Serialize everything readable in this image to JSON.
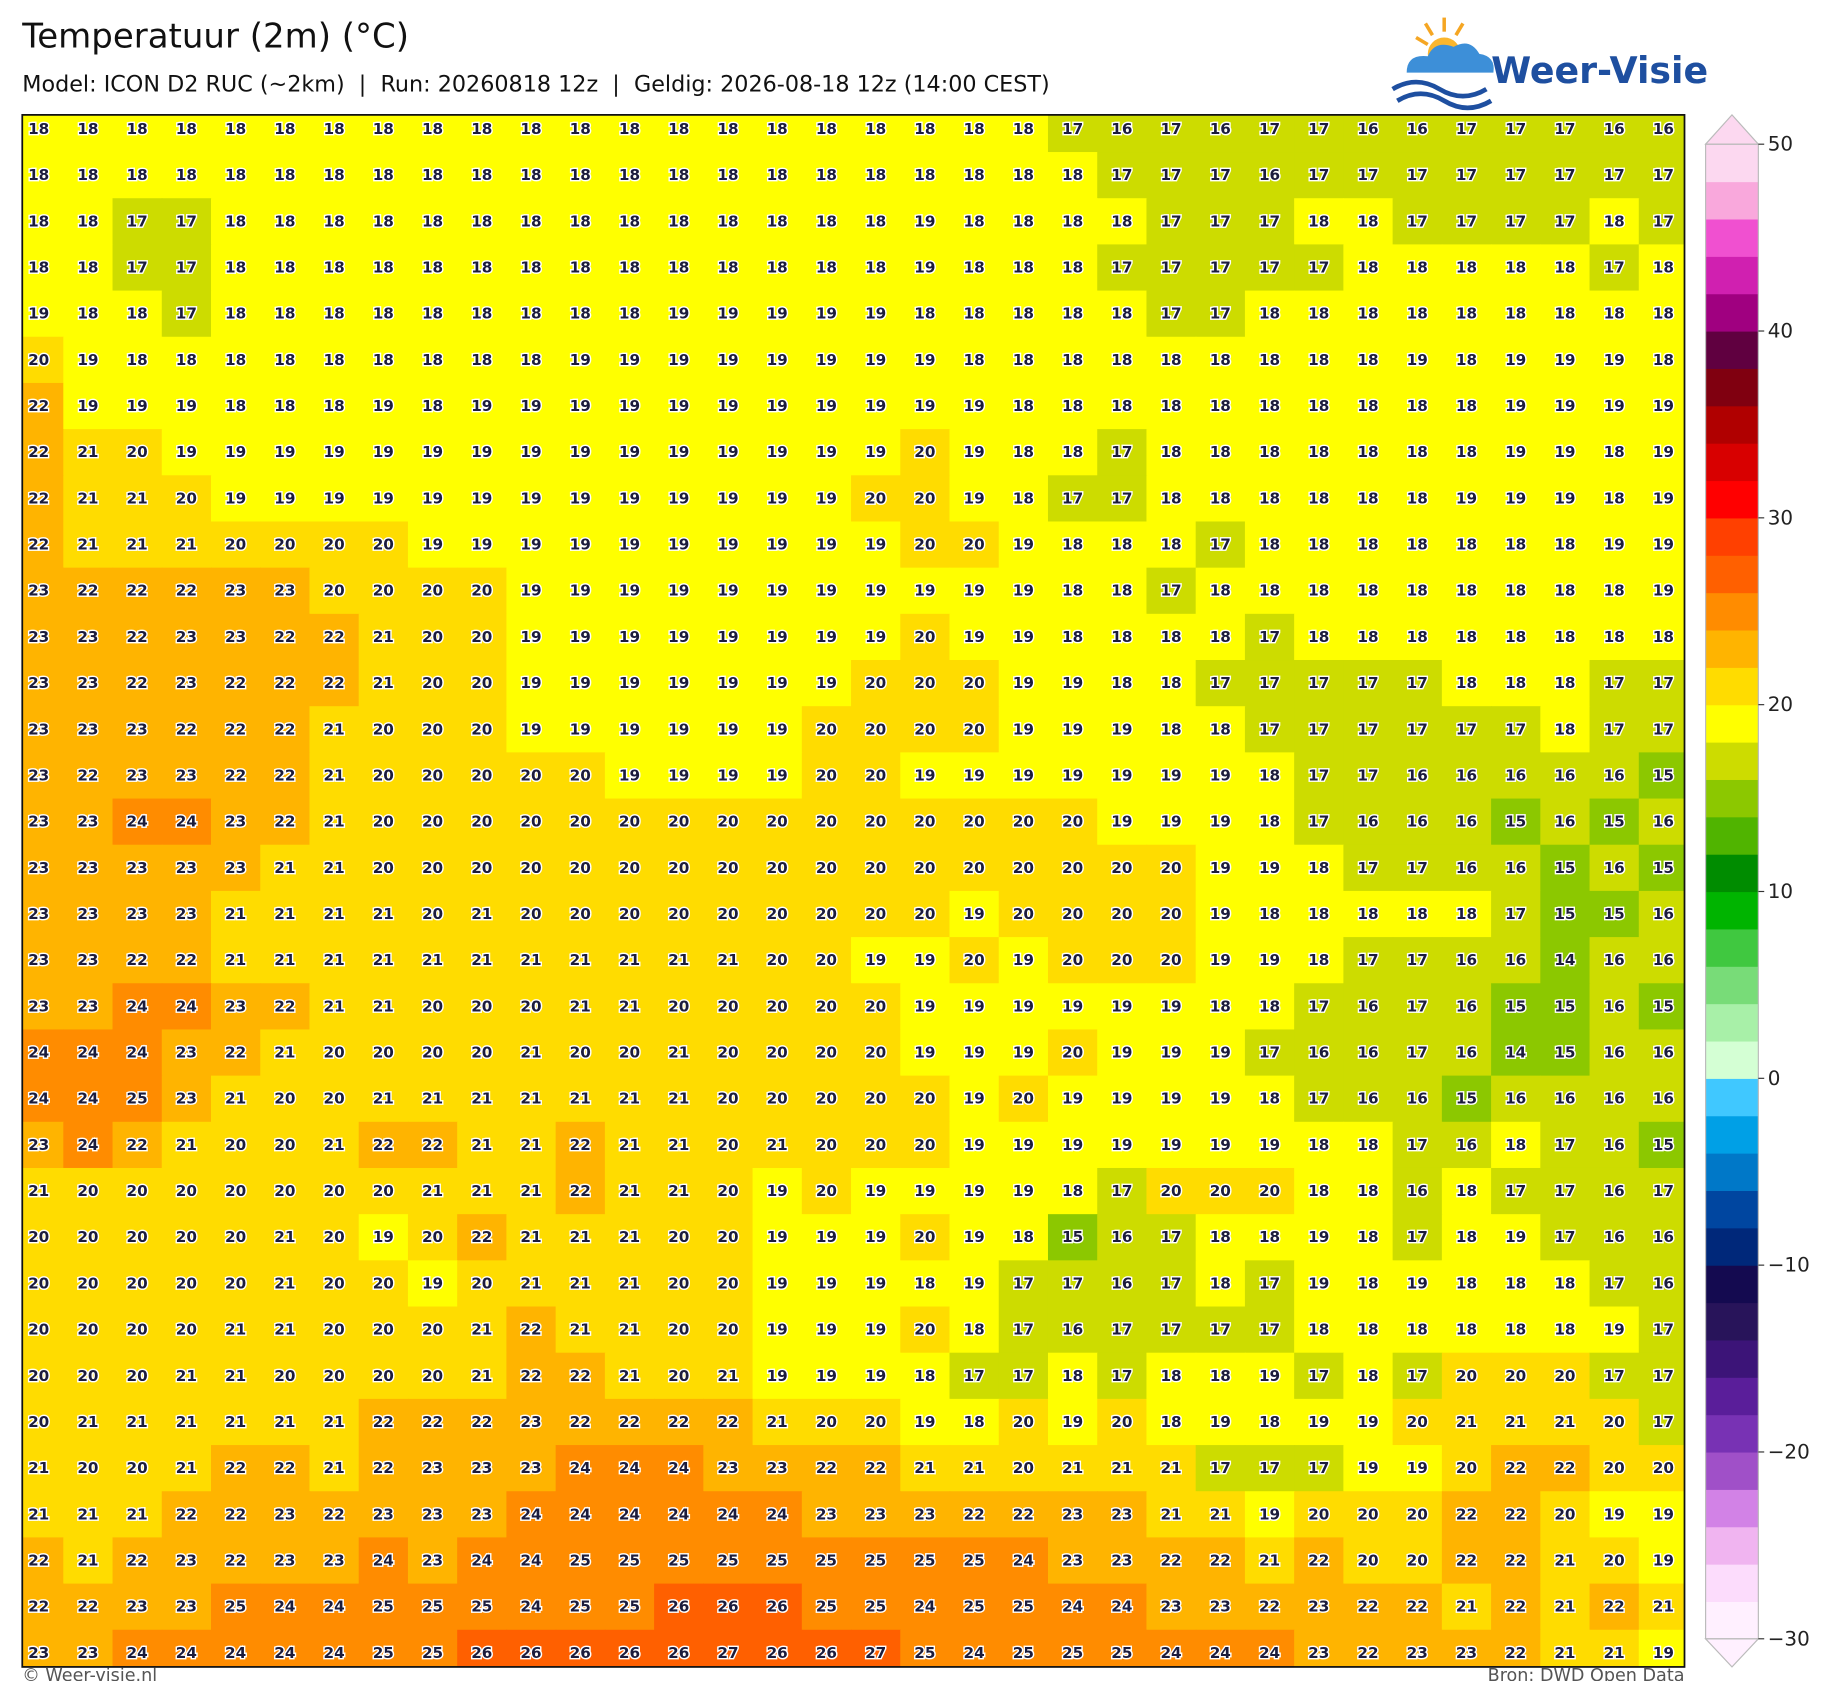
{
  "header": {
    "title": "Temperatuur (2m) (°C)",
    "subtitle": "Model: ICON D2 RUC (~2km)  |  Run: 20260818 12z  |  Geldig: 2026-08-18 12z (14:00 CEST)",
    "logo": "Weer-Visie"
  },
  "map": {
    "type": "grid",
    "values": [
      [
        18,
        18,
        18,
        18,
        18,
        18,
        18,
        18,
        18,
        18,
        18,
        18,
        18,
        18,
        18,
        18,
        18,
        18,
        18,
        18,
        18,
        17,
        16,
        17,
        16,
        17,
        17,
        16,
        16,
        17,
        17,
        17,
        16,
        16
      ],
      [
        18,
        18,
        18,
        18,
        18,
        18,
        18,
        18,
        18,
        18,
        18,
        18,
        18,
        18,
        18,
        18,
        18,
        18,
        18,
        18,
        18,
        18,
        17,
        17,
        17,
        16,
        17,
        17,
        17,
        17,
        17,
        17,
        17,
        17
      ],
      [
        18,
        18,
        17,
        17,
        18,
        18,
        18,
        18,
        18,
        18,
        18,
        18,
        18,
        18,
        18,
        18,
        18,
        18,
        19,
        18,
        18,
        18,
        18,
        17,
        17,
        17,
        18,
        18,
        17,
        17,
        17,
        17,
        18,
        17
      ],
      [
        18,
        18,
        17,
        17,
        18,
        18,
        18,
        18,
        18,
        18,
        18,
        18,
        18,
        18,
        18,
        18,
        18,
        18,
        19,
        18,
        18,
        18,
        17,
        17,
        17,
        17,
        17,
        18,
        18,
        18,
        18,
        18,
        17,
        18
      ],
      [
        19,
        18,
        18,
        17,
        18,
        18,
        18,
        18,
        18,
        18,
        18,
        18,
        18,
        19,
        19,
        19,
        19,
        19,
        18,
        18,
        18,
        18,
        18,
        17,
        17,
        18,
        18,
        18,
        18,
        18,
        18,
        18,
        18,
        18
      ],
      [
        20,
        19,
        18,
        18,
        18,
        18,
        18,
        18,
        18,
        18,
        18,
        19,
        19,
        19,
        19,
        19,
        19,
        19,
        19,
        18,
        18,
        18,
        18,
        18,
        18,
        18,
        18,
        18,
        19,
        18,
        19,
        19,
        19,
        18
      ],
      [
        22,
        19,
        19,
        19,
        18,
        18,
        18,
        19,
        18,
        19,
        19,
        19,
        19,
        19,
        19,
        19,
        19,
        19,
        19,
        19,
        18,
        18,
        18,
        18,
        18,
        18,
        18,
        18,
        18,
        18,
        19,
        19,
        19,
        19
      ],
      [
        22,
        21,
        20,
        19,
        19,
        19,
        19,
        19,
        19,
        19,
        19,
        19,
        19,
        19,
        19,
        19,
        19,
        19,
        20,
        19,
        18,
        18,
        17,
        18,
        18,
        18,
        18,
        18,
        18,
        18,
        19,
        19,
        18,
        19
      ],
      [
        22,
        21,
        21,
        20,
        19,
        19,
        19,
        19,
        19,
        19,
        19,
        19,
        19,
        19,
        19,
        19,
        19,
        20,
        20,
        19,
        18,
        17,
        17,
        18,
        18,
        18,
        18,
        18,
        18,
        19,
        19,
        19,
        18,
        19
      ],
      [
        22,
        21,
        21,
        21,
        20,
        20,
        20,
        20,
        19,
        19,
        19,
        19,
        19,
        19,
        19,
        19,
        19,
        19,
        20,
        20,
        19,
        18,
        18,
        18,
        17,
        18,
        18,
        18,
        18,
        18,
        18,
        18,
        19,
        19
      ],
      [
        23,
        22,
        22,
        22,
        23,
        23,
        20,
        20,
        20,
        20,
        19,
        19,
        19,
        19,
        19,
        19,
        19,
        19,
        19,
        19,
        19,
        18,
        18,
        17,
        18,
        18,
        18,
        18,
        18,
        18,
        18,
        18,
        18,
        19
      ],
      [
        23,
        23,
        22,
        23,
        23,
        22,
        22,
        21,
        20,
        20,
        19,
        19,
        19,
        19,
        19,
        19,
        19,
        19,
        20,
        19,
        19,
        18,
        18,
        18,
        18,
        17,
        18,
        18,
        18,
        18,
        18,
        18,
        18,
        18
      ],
      [
        23,
        23,
        22,
        23,
        22,
        22,
        22,
        21,
        20,
        20,
        19,
        19,
        19,
        19,
        19,
        19,
        19,
        20,
        20,
        20,
        19,
        19,
        18,
        18,
        17,
        17,
        17,
        17,
        17,
        18,
        18,
        18,
        17,
        17
      ],
      [
        23,
        23,
        23,
        22,
        22,
        22,
        21,
        20,
        20,
        20,
        19,
        19,
        19,
        19,
        19,
        19,
        20,
        20,
        20,
        20,
        19,
        19,
        19,
        18,
        18,
        17,
        17,
        17,
        17,
        17,
        17,
        18,
        17,
        17
      ],
      [
        23,
        22,
        23,
        23,
        22,
        22,
        21,
        20,
        20,
        20,
        20,
        20,
        19,
        19,
        19,
        19,
        20,
        20,
        19,
        19,
        19,
        19,
        19,
        19,
        19,
        18,
        17,
        17,
        16,
        16,
        16,
        16,
        16,
        15
      ],
      [
        23,
        23,
        24,
        24,
        23,
        22,
        21,
        20,
        20,
        20,
        20,
        20,
        20,
        20,
        20,
        20,
        20,
        20,
        20,
        20,
        20,
        20,
        19,
        19,
        19,
        18,
        17,
        16,
        16,
        16,
        15,
        16,
        15,
        16
      ],
      [
        23,
        23,
        23,
        23,
        23,
        21,
        21,
        20,
        20,
        20,
        20,
        20,
        20,
        20,
        20,
        20,
        20,
        20,
        20,
        20,
        20,
        20,
        20,
        20,
        19,
        19,
        18,
        17,
        17,
        16,
        16,
        15,
        16,
        15
      ],
      [
        23,
        23,
        23,
        23,
        21,
        21,
        21,
        21,
        20,
        21,
        20,
        20,
        20,
        20,
        20,
        20,
        20,
        20,
        20,
        19,
        20,
        20,
        20,
        20,
        19,
        18,
        18,
        18,
        18,
        18,
        17,
        15,
        15,
        16
      ],
      [
        23,
        23,
        22,
        22,
        21,
        21,
        21,
        21,
        21,
        21,
        21,
        21,
        21,
        21,
        21,
        20,
        20,
        19,
        19,
        20,
        19,
        20,
        20,
        20,
        19,
        19,
        18,
        17,
        17,
        16,
        16,
        14,
        16,
        16
      ],
      [
        23,
        23,
        24,
        24,
        23,
        22,
        21,
        21,
        20,
        20,
        20,
        21,
        21,
        20,
        20,
        20,
        20,
        20,
        19,
        19,
        19,
        19,
        19,
        19,
        18,
        18,
        17,
        16,
        17,
        16,
        15,
        15,
        16,
        15
      ],
      [
        24,
        24,
        24,
        23,
        22,
        21,
        20,
        20,
        20,
        20,
        21,
        20,
        20,
        21,
        20,
        20,
        20,
        20,
        19,
        19,
        19,
        20,
        19,
        19,
        19,
        17,
        16,
        16,
        17,
        16,
        14,
        15,
        16,
        16
      ],
      [
        24,
        24,
        25,
        23,
        21,
        20,
        20,
        21,
        21,
        21,
        21,
        21,
        21,
        21,
        20,
        20,
        20,
        20,
        20,
        19,
        20,
        19,
        19,
        19,
        19,
        18,
        17,
        16,
        16,
        15,
        16,
        16,
        16,
        16
      ],
      [
        23,
        24,
        22,
        21,
        20,
        20,
        21,
        22,
        22,
        21,
        21,
        22,
        21,
        21,
        20,
        21,
        20,
        20,
        20,
        19,
        19,
        19,
        19,
        19,
        19,
        19,
        18,
        18,
        17,
        16,
        18,
        17,
        16,
        15
      ],
      [
        21,
        20,
        20,
        20,
        20,
        20,
        20,
        20,
        21,
        21,
        21,
        22,
        21,
        21,
        20,
        19,
        20,
        19,
        19,
        19,
        19,
        18,
        17,
        20,
        20,
        20,
        18,
        18,
        16,
        18,
        17,
        17,
        16,
        17
      ],
      [
        20,
        20,
        20,
        20,
        20,
        21,
        20,
        19,
        20,
        22,
        21,
        21,
        21,
        20,
        20,
        19,
        19,
        19,
        20,
        19,
        18,
        15,
        16,
        17,
        18,
        18,
        19,
        18,
        17,
        18,
        19,
        17,
        16,
        16
      ],
      [
        20,
        20,
        20,
        20,
        20,
        21,
        20,
        20,
        19,
        20,
        21,
        21,
        21,
        20,
        20,
        19,
        19,
        19,
        18,
        19,
        17,
        17,
        16,
        17,
        18,
        17,
        19,
        18,
        19,
        18,
        18,
        18,
        17,
        16
      ],
      [
        20,
        20,
        20,
        20,
        21,
        21,
        20,
        20,
        20,
        21,
        22,
        21,
        21,
        20,
        20,
        19,
        19,
        19,
        20,
        18,
        17,
        16,
        17,
        17,
        17,
        17,
        18,
        18,
        18,
        18,
        18,
        18,
        19,
        17
      ],
      [
        20,
        20,
        20,
        21,
        21,
        20,
        20,
        20,
        20,
        21,
        22,
        22,
        21,
        20,
        21,
        19,
        19,
        19,
        18,
        17,
        17,
        18,
        17,
        18,
        18,
        19,
        17,
        18,
        17,
        20,
        20,
        20,
        17,
        17
      ],
      [
        20,
        21,
        21,
        21,
        21,
        21,
        21,
        22,
        22,
        22,
        23,
        22,
        22,
        22,
        22,
        21,
        20,
        20,
        19,
        18,
        20,
        19,
        20,
        18,
        19,
        18,
        19,
        19,
        20,
        21,
        21,
        21,
        20,
        17
      ],
      [
        21,
        20,
        20,
        21,
        22,
        22,
        21,
        22,
        23,
        23,
        23,
        24,
        24,
        24,
        23,
        23,
        22,
        22,
        21,
        21,
        20,
        21,
        21,
        21,
        17,
        17,
        17,
        19,
        19,
        20,
        22,
        22,
        20,
        20
      ],
      [
        21,
        21,
        21,
        22,
        22,
        23,
        22,
        23,
        23,
        23,
        24,
        24,
        24,
        24,
        24,
        24,
        23,
        23,
        23,
        22,
        22,
        23,
        23,
        21,
        21,
        19,
        20,
        20,
        20,
        22,
        22,
        20,
        19,
        19
      ],
      [
        22,
        21,
        22,
        23,
        22,
        23,
        23,
        24,
        23,
        24,
        24,
        25,
        25,
        25,
        25,
        25,
        25,
        25,
        25,
        25,
        24,
        23,
        23,
        22,
        22,
        21,
        22,
        20,
        20,
        22,
        22,
        21,
        20,
        19
      ],
      [
        22,
        22,
        23,
        23,
        25,
        24,
        24,
        25,
        25,
        25,
        24,
        25,
        25,
        26,
        26,
        26,
        25,
        25,
        24,
        25,
        25,
        24,
        24,
        23,
        23,
        22,
        23,
        22,
        22,
        21,
        22,
        21,
        22,
        21
      ],
      [
        23,
        23,
        24,
        24,
        24,
        24,
        24,
        25,
        25,
        26,
        26,
        26,
        26,
        26,
        27,
        26,
        26,
        27,
        25,
        24,
        25,
        25,
        25,
        24,
        24,
        24,
        23,
        22,
        23,
        23,
        22,
        21,
        21,
        19
      ]
    ]
  },
  "colorbar": {
    "lim": [
      -30,
      50
    ],
    "ticks": [
      {
        "value": -30,
        "label": "−30"
      },
      {
        "value": -20,
        "label": "−20"
      },
      {
        "value": -10,
        "label": "−10"
      },
      0,
      10,
      20,
      30,
      40,
      50
    ],
    "colors": [
      "#fff0ff",
      "#fcdcfc",
      "#f0b4f0",
      "#d282e6",
      "#a050c8",
      "#7832b4",
      "#5a1e9a",
      "#3c1478",
      "#28145a",
      "#140a50",
      "#00287a",
      "#0046a0",
      "#0078c8",
      "#00a0e6",
      "#40c8ff",
      "#d4ffd4",
      "#a8f0a8",
      "#78dc78",
      "#40c840",
      "#00b400",
      "#008c00",
      "#50b400",
      "#8cc800",
      "#cddc00",
      "#ffff00",
      "#ffdc00",
      "#ffb400",
      "#ff8c00",
      "#ff6000",
      "#ff4000",
      "#ff0000",
      "#d80000",
      "#b00000",
      "#800010",
      "#600040",
      "#a00080",
      "#d020b0",
      "#f050d0",
      "#f9a8dc",
      "#fcd8f0"
    ]
  },
  "footer": {
    "left": "© Weer-visie.nl",
    "right": "Bron: DWD Open Data"
  }
}
